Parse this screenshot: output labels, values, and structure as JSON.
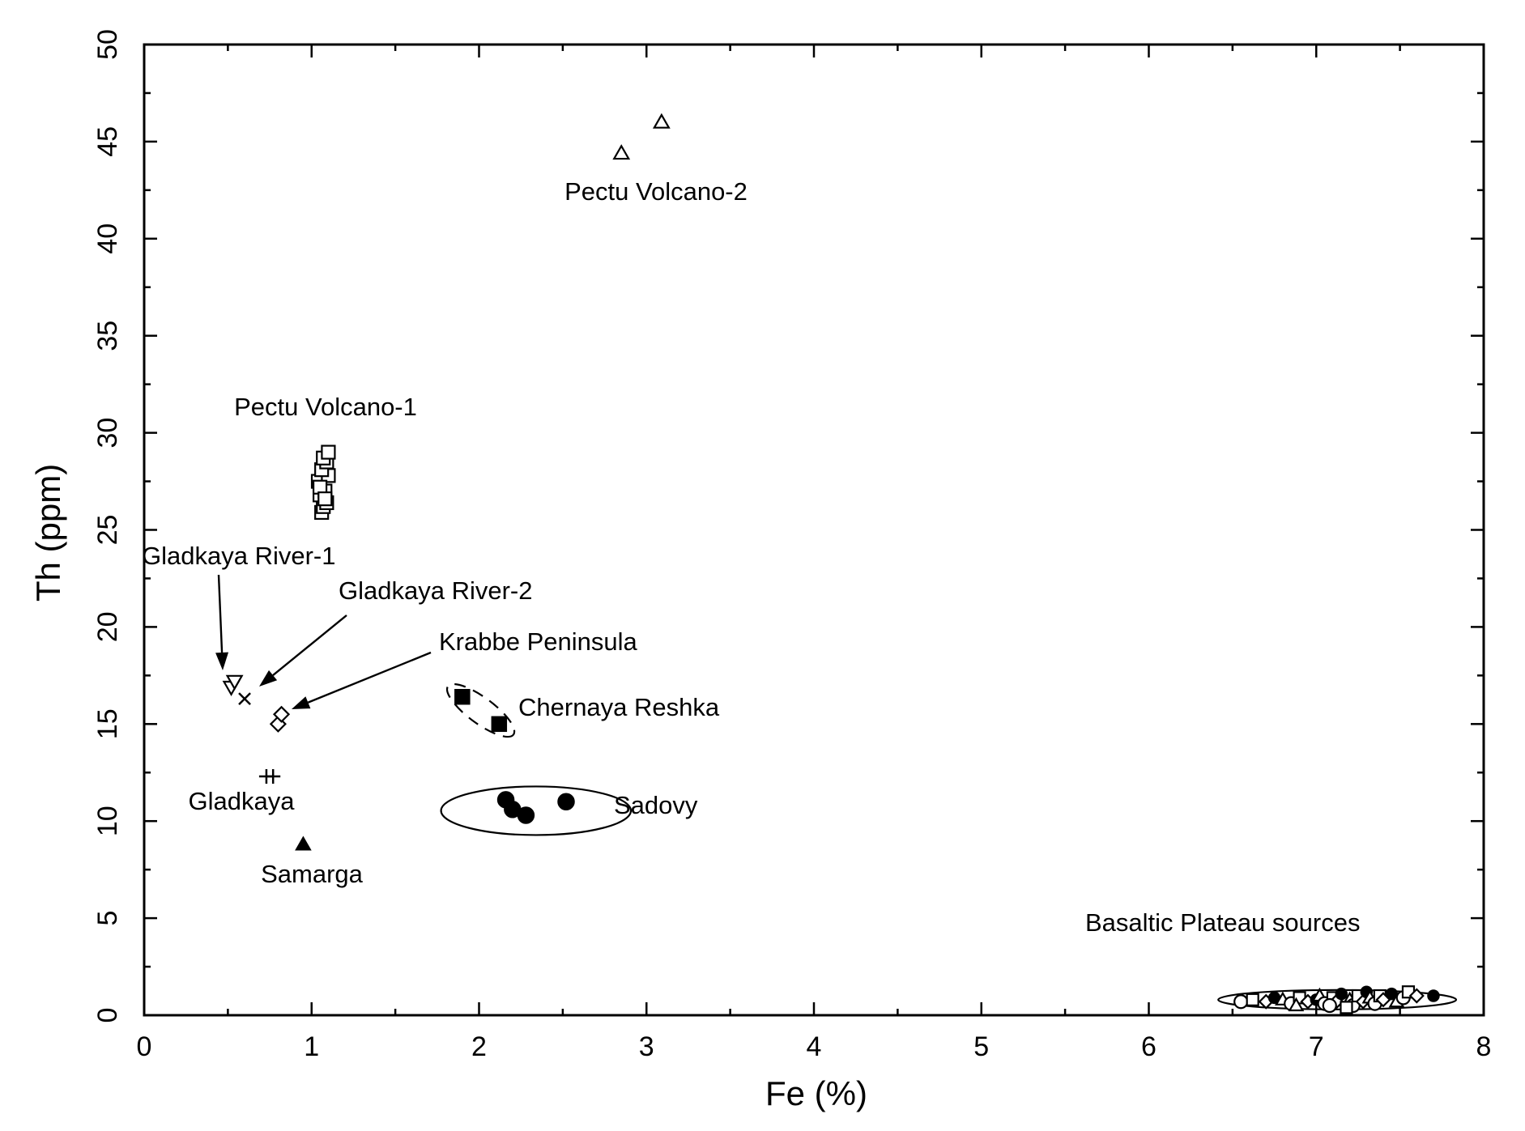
{
  "chart_data": {
    "type": "scatter",
    "title": "",
    "xlabel": "Fe (%)",
    "ylabel": "Th (ppm)",
    "xlim": [
      0,
      8
    ],
    "ylim": [
      0,
      50
    ],
    "xticks": [
      "0",
      "1",
      "2",
      "3",
      "4",
      "5",
      "6",
      "7",
      "8"
    ],
    "yticks": [
      "0",
      "5",
      "10",
      "15",
      "20",
      "25",
      "30",
      "35",
      "40",
      "45",
      "50"
    ],
    "grid": false,
    "series": [
      {
        "name": "Pectu Volcano-2",
        "marker": "triangle-open",
        "points": [
          [
            2.85,
            44.4
          ],
          [
            3.09,
            46.0
          ]
        ]
      },
      {
        "name": "Pectu Volcano-1",
        "marker": "square-open",
        "points": [
          [
            1.06,
            25.9
          ],
          [
            1.07,
            26.2
          ],
          [
            1.09,
            26.4
          ],
          [
            1.05,
            26.8
          ],
          [
            1.08,
            27.0
          ],
          [
            1.04,
            27.5
          ],
          [
            1.1,
            27.8
          ],
          [
            1.06,
            28.1
          ],
          [
            1.09,
            28.5
          ],
          [
            1.07,
            28.7
          ],
          [
            1.1,
            29.0
          ],
          [
            1.05,
            27.2
          ],
          [
            1.08,
            26.6
          ]
        ]
      },
      {
        "name": "Gladkaya River-1",
        "marker": "triangle-down-open",
        "points": [
          [
            0.52,
            16.9
          ],
          [
            0.54,
            17.2
          ]
        ]
      },
      {
        "name": "Gladkaya River-2",
        "marker": "x",
        "points": [
          [
            0.6,
            16.3
          ]
        ]
      },
      {
        "name": "Krabbe Peninsula",
        "marker": "diamond-open",
        "points": [
          [
            0.8,
            15.0
          ],
          [
            0.82,
            15.5
          ]
        ]
      },
      {
        "name": "Chernaya Reshka",
        "marker": "square-filled",
        "points": [
          [
            1.9,
            16.4
          ],
          [
            2.12,
            15.0
          ]
        ]
      },
      {
        "name": "Sadovy",
        "marker": "circle-filled",
        "points": [
          [
            2.16,
            11.1
          ],
          [
            2.2,
            10.6
          ],
          [
            2.28,
            10.3
          ],
          [
            2.52,
            11.0
          ]
        ]
      },
      {
        "name": "Gladkaya",
        "marker": "plus",
        "points": [
          [
            0.73,
            12.3
          ],
          [
            0.77,
            12.3
          ]
        ]
      },
      {
        "name": "Samarga",
        "marker": "triangle-filled",
        "points": [
          [
            0.95,
            8.8
          ]
        ]
      },
      {
        "name": "Basaltic Plateau sources",
        "marker": "mixed",
        "points": [
          [
            6.55,
            0.7
          ],
          [
            6.62,
            0.8
          ],
          [
            6.7,
            0.7
          ],
          [
            6.75,
            0.9
          ],
          [
            6.8,
            0.8
          ],
          [
            6.85,
            0.6
          ],
          [
            6.9,
            0.9
          ],
          [
            6.95,
            0.7
          ],
          [
            7.0,
            0.8
          ],
          [
            7.02,
            1.0
          ],
          [
            7.05,
            0.6
          ],
          [
            7.1,
            0.9
          ],
          [
            7.12,
            0.7
          ],
          [
            7.15,
            1.1
          ],
          [
            7.2,
            0.8
          ],
          [
            7.22,
            0.5
          ],
          [
            7.25,
            1.0
          ],
          [
            7.28,
            0.7
          ],
          [
            7.3,
            1.2
          ],
          [
            7.32,
            0.9
          ],
          [
            7.35,
            0.6
          ],
          [
            7.38,
            1.0
          ],
          [
            7.4,
            0.8
          ],
          [
            7.45,
            1.1
          ],
          [
            7.48,
            0.7
          ],
          [
            7.52,
            0.9
          ],
          [
            7.55,
            1.2
          ],
          [
            7.6,
            1.0
          ],
          [
            7.7,
            1.0
          ],
          [
            6.88,
            0.5
          ],
          [
            7.08,
            0.5
          ],
          [
            7.18,
            0.4
          ]
        ]
      }
    ],
    "annotations": [
      "Pectu Volcano-2",
      "Pectu Volcano-1",
      "Gladkaya River-1",
      "Gladkaya River-2",
      "Krabbe Peninsula",
      "Chernaya Reshka",
      "Sadovy",
      "Gladkaya",
      "Samarga",
      "Basaltic Plateau sources"
    ]
  }
}
